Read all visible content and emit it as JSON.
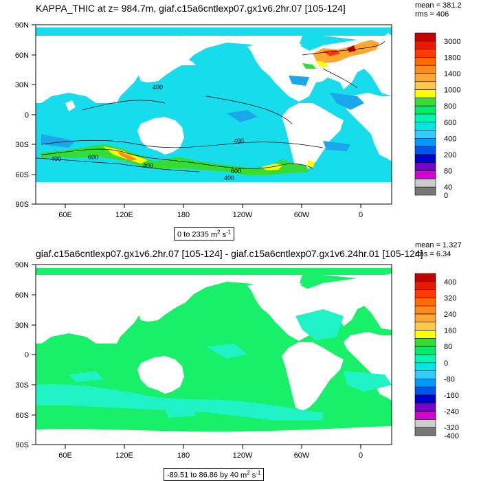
{
  "panels": [
    {
      "title": "KAPPA_THIC at z= 984.7m, giaf.c15a6cntlexp07.gx1v6.2hr.07 [105-124]",
      "mean_label": "mean = 381.2",
      "rms_label": "rms = 406",
      "range_text": "0 to 2335",
      "units_base": "m",
      "units_exp1": "2",
      "units_mid": " s",
      "units_exp2": "-1",
      "contour_labels": [
        "400",
        "400",
        "400",
        "600",
        "400",
        "600",
        "400"
      ],
      "colorbar_labels": [
        "3000",
        "1800",
        "1400",
        "1000",
        "800",
        "600",
        "400",
        "200",
        "80",
        "40",
        "0"
      ],
      "colorbar_colors": [
        "#c40000",
        "#e81a00",
        "#ff3a00",
        "#ff6a00",
        "#ff8c1a",
        "#ffa733",
        "#ffc84a",
        "#ffff00",
        "#33dd33",
        "#00ee66",
        "#00f5b0",
        "#00e5e5",
        "#33ccff",
        "#0099ff",
        "#0055ee",
        "#0000cc",
        "#7a00cc",
        "#d400d4",
        "#cccccc",
        "#777777"
      ]
    },
    {
      "title": "giaf.c15a6cntlexp07.gx1v6.2hr.07 [105-124] - giaf.c15a6cntlexp07.gx1v6.24hr.01 [105-124]",
      "mean_label": "mean = 1.327",
      "rms_label": "rms = 6.34",
      "range_text": "-89.51 to 86.86 by 40",
      "units_base": "m",
      "units_exp1": "2",
      "units_mid": " s",
      "units_exp2": "-1",
      "colorbar_labels": [
        "400",
        "320",
        "240",
        "160",
        "80",
        "0",
        "-80",
        "-160",
        "-240",
        "-320",
        "-400"
      ],
      "colorbar_colors": [
        "#c40000",
        "#e81a00",
        "#ff3a00",
        "#ff6a00",
        "#ff8c1a",
        "#ffa733",
        "#ffc84a",
        "#ffff00",
        "#33dd33",
        "#00ee66",
        "#00f5b0",
        "#00e5e5",
        "#33ccff",
        "#0099ff",
        "#0055ee",
        "#0000cc",
        "#7a00cc",
        "#d400d4",
        "#cccccc",
        "#777777"
      ]
    }
  ],
  "axes": {
    "lat_labels": [
      "90N",
      "60N",
      "30N",
      "0",
      "30S",
      "60S",
      "90S"
    ],
    "lon_labels": [
      "60E",
      "120E",
      "180",
      "120W",
      "60W",
      "0"
    ]
  },
  "colors": {
    "ocean_panel1": "#16dcec",
    "ocean_panel1_dark": "#1aa8ec",
    "ocean_panel2": "#19f06a",
    "ocean_panel2_cyan": "#1ff2c4",
    "land": "#ffffff"
  }
}
